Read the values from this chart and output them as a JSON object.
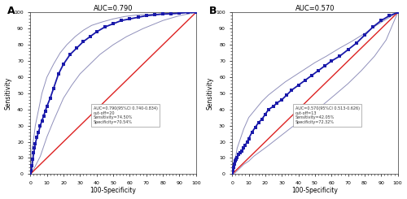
{
  "panel_A": {
    "title": "AUC=0.790",
    "label": "A",
    "annotation": "AUC=0.790(95%CI 0.740-0.834)\ncut-off=20\nSensitivity=74.50%\nSpecificity=70.54%",
    "roc_x": [
      0,
      0.5,
      1,
      1.5,
      2,
      2.5,
      3,
      4,
      5,
      6,
      7,
      8,
      9,
      10,
      12,
      14,
      17,
      20,
      24,
      28,
      32,
      36,
      40,
      45,
      50,
      55,
      60,
      65,
      70,
      75,
      80,
      85,
      90,
      95,
      100
    ],
    "roc_y": [
      0,
      2,
      5,
      9,
      13,
      16,
      19,
      23,
      26,
      30,
      33,
      36,
      39,
      42,
      47,
      53,
      62,
      68,
      74,
      78,
      82,
      85,
      88,
      91,
      93,
      95,
      96,
      97,
      98,
      98.5,
      99,
      99.2,
      99.5,
      100,
      100
    ],
    "ci_upper_x": [
      0,
      0.5,
      1,
      2,
      3,
      5,
      7,
      10,
      14,
      18,
      22,
      27,
      32,
      37,
      43,
      50,
      57,
      65,
      75,
      85,
      95,
      100
    ],
    "ci_upper_y": [
      0,
      8,
      15,
      22,
      30,
      40,
      50,
      60,
      68,
      75,
      80,
      85,
      89,
      92,
      94,
      96,
      97.5,
      98.5,
      99,
      99.5,
      100,
      100
    ],
    "ci_lower_x": [
      0,
      1,
      2,
      3,
      4,
      5,
      6,
      7,
      8,
      9,
      10,
      12,
      14,
      17,
      20,
      25,
      30,
      36,
      42,
      50,
      58,
      68,
      80,
      90,
      100
    ],
    "ci_lower_y": [
      0,
      1,
      3,
      5,
      7,
      9,
      11,
      14,
      17,
      20,
      23,
      28,
      33,
      40,
      47,
      55,
      62,
      68,
      74,
      80,
      85,
      90,
      95,
      98,
      100
    ]
  },
  "panel_B": {
    "title": "AUC=0.570",
    "label": "B",
    "annotation": "AUC=0.570(95%CI 0.513-0.626)\ncut-off=13\nSensitivity=42.05%\nSpecificity=72.32%",
    "roc_x": [
      0,
      0.5,
      1,
      1.5,
      2,
      2.5,
      3,
      4,
      5,
      6,
      7,
      8,
      9,
      10,
      12,
      14,
      16,
      18,
      20,
      22,
      25,
      27,
      30,
      33,
      36,
      40,
      44,
      48,
      52,
      56,
      60,
      65,
      70,
      75,
      80,
      85,
      90,
      95,
      100
    ],
    "roc_y": [
      0,
      2,
      4,
      6,
      8,
      9,
      10,
      12,
      13,
      14,
      16,
      18,
      20,
      22,
      26,
      29,
      32,
      34,
      37,
      40,
      42,
      44,
      46,
      49,
      52,
      55,
      58,
      61,
      64,
      67,
      70,
      73,
      77,
      81,
      86,
      91,
      95,
      98,
      100
    ],
    "ci_upper_x": [
      0,
      1,
      2,
      3,
      5,
      7,
      10,
      14,
      18,
      22,
      27,
      32,
      38,
      44,
      50,
      57,
      65,
      72,
      80,
      87,
      95,
      100
    ],
    "ci_upper_y": [
      0,
      5,
      10,
      16,
      22,
      28,
      35,
      40,
      45,
      49,
      53,
      57,
      61,
      65,
      69,
      73,
      78,
      82,
      87,
      92,
      97,
      100
    ],
    "ci_lower_x": [
      0,
      1,
      2,
      3,
      5,
      7,
      10,
      13,
      17,
      21,
      26,
      31,
      36,
      42,
      48,
      55,
      62,
      70,
      78,
      86,
      93,
      100
    ],
    "ci_lower_y": [
      0,
      0,
      1,
      2,
      4,
      6,
      8,
      11,
      14,
      17,
      21,
      25,
      29,
      33,
      38,
      43,
      49,
      56,
      64,
      73,
      83,
      100
    ]
  },
  "roc_color": "#1a1aaa",
  "ci_color": "#9090bb",
  "diag_color": "#dd2222",
  "bg_color": "#ffffff",
  "xlabel": "100-Specificity",
  "ylabel": "Sensitivity",
  "tick_labels": [
    0,
    10,
    20,
    30,
    40,
    50,
    60,
    70,
    80,
    90,
    100
  ]
}
